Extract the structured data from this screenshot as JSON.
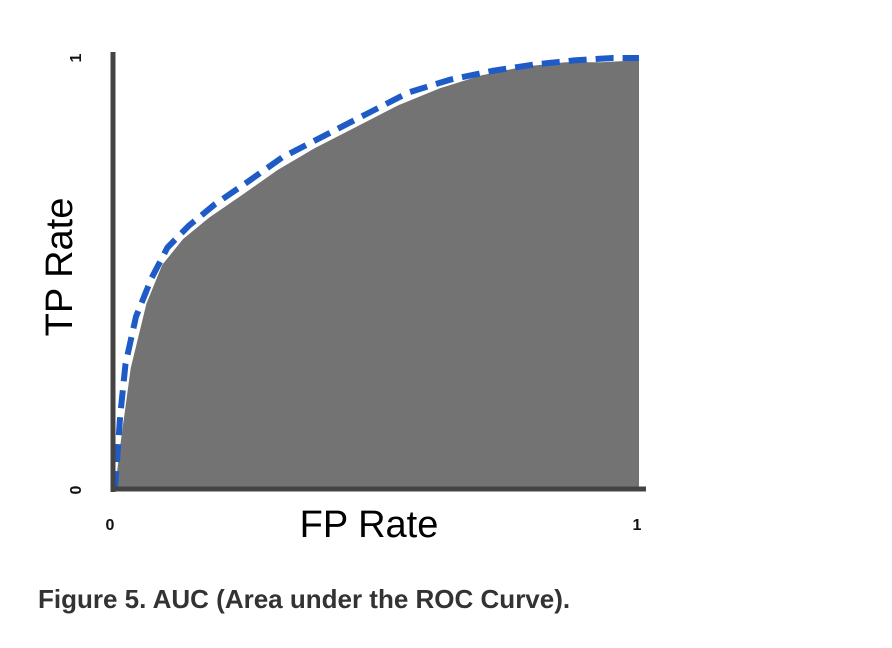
{
  "chart_data": {
    "type": "area",
    "title": "",
    "xlabel": "FP Rate",
    "ylabel": "TP Rate",
    "xlim": [
      0,
      1
    ],
    "ylim": [
      0,
      1
    ],
    "x_ticks": [
      "0",
      "1"
    ],
    "y_ticks": [
      "0",
      "1"
    ],
    "grid": false,
    "series": [
      {
        "style": "filled-area",
        "color": "#737373",
        "x": [
          0,
          0.01,
          0.03,
          0.06,
          0.09,
          0.13,
          0.18,
          0.24,
          0.31,
          0.38,
          0.46,
          0.54,
          0.62,
          0.7,
          0.78,
          0.86,
          0.93,
          1.0
        ],
        "y": [
          0,
          0.1,
          0.28,
          0.43,
          0.52,
          0.58,
          0.63,
          0.68,
          0.74,
          0.79,
          0.84,
          0.89,
          0.93,
          0.96,
          0.98,
          0.99,
          0.99,
          0.995
        ]
      },
      {
        "style": "dashed-line",
        "color": "#1e5bc6",
        "x": [
          0,
          0.01,
          0.02,
          0.04,
          0.07,
          0.1,
          0.14,
          0.19,
          0.25,
          0.32,
          0.4,
          0.48,
          0.56,
          0.64,
          0.72,
          0.8,
          0.88,
          0.95,
          1.0
        ],
        "y": [
          0,
          0.17,
          0.29,
          0.4,
          0.49,
          0.56,
          0.61,
          0.66,
          0.71,
          0.77,
          0.82,
          0.87,
          0.92,
          0.95,
          0.97,
          0.985,
          0.995,
          1.0,
          1.0
        ]
      }
    ]
  },
  "caption": "Figure 5. AUC (Area under the ROC Curve)."
}
